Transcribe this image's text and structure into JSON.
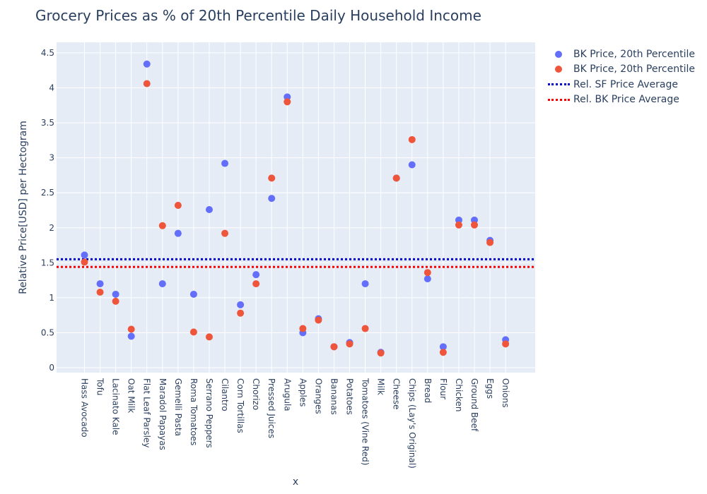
{
  "chart_data": {
    "type": "scatter",
    "title": "Grocery Prices as % of 20th Percentile Daily Household Income",
    "xlabel": "x",
    "ylabel": "Relative Price[USD] per Hectogram",
    "ylim": [
      -0.07,
      4.65
    ],
    "yticks": [
      0,
      0.5,
      1,
      1.5,
      2,
      2.5,
      3,
      3.5,
      4,
      4.5
    ],
    "ytick_labels": [
      "0",
      "0.5",
      "1",
      "1.5",
      "2",
      "2.5",
      "3",
      "3.5",
      "4",
      "4.5"
    ],
    "grid": true,
    "legend_position": "top-right outside",
    "categories": [
      "Hass Avocado",
      "Tofu",
      "Lacinato Kale",
      "Oat Milk",
      "Flat Leaf Parsley",
      "Maradol Papayas",
      "Gemelli Pasta",
      "Roma Tomatoes",
      "Serrano Peppers",
      "Cilantro",
      "Corn Tortillas",
      "Chorizo",
      "Pressed Juices",
      "Arugula",
      "Apples",
      "Oranges",
      "Bananas",
      "Potatoes",
      "Tomatoes (Vine Red)",
      "Milk",
      "Cheese",
      "Chips (Lay's Original)",
      "Bread",
      "Flour",
      "Chicken",
      "Ground Beef",
      "Eggs",
      "Onions"
    ],
    "series": [
      {
        "name": "BK Price, 20th Percentile",
        "color": "#636efa",
        "values": [
          1.61,
          1.2,
          1.05,
          0.45,
          4.34,
          1.2,
          1.92,
          1.05,
          2.26,
          2.92,
          0.9,
          1.33,
          2.42,
          3.87,
          0.5,
          0.7,
          0.3,
          0.36,
          1.2,
          0.22,
          2.71,
          2.9,
          1.27,
          0.3,
          2.11,
          2.11,
          1.82,
          0.4
        ]
      },
      {
        "name": "BK Price, 20th Percentile",
        "color": "#ef553b",
        "values": [
          1.51,
          1.08,
          0.95,
          0.55,
          4.06,
          2.03,
          2.32,
          0.51,
          0.44,
          1.92,
          0.78,
          1.2,
          2.71,
          3.8,
          0.56,
          0.68,
          0.3,
          0.34,
          0.56,
          0.21,
          2.71,
          3.26,
          1.36,
          0.22,
          2.04,
          2.04,
          1.79,
          0.34
        ]
      }
    ],
    "reference_lines": [
      {
        "name": "Rel. SF Price Average",
        "value": 1.55,
        "color": "#0000cc"
      },
      {
        "name": "Rel. BK Price Average",
        "value": 1.44,
        "color": "#ff0000"
      }
    ]
  }
}
